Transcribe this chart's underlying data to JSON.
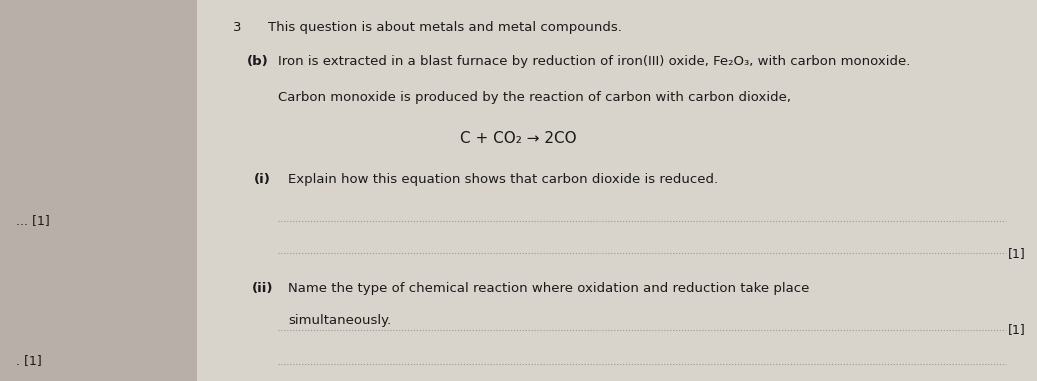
{
  "bg_color": "#b8b0a8",
  "paper_color": "#d8d4cc",
  "text_color": "#1a1a1a",
  "dotline_color": "#999999",
  "title_num": "3",
  "title_text": "This question is about metals and metal compounds.",
  "part_b_label": "(b)",
  "part_b_text": "Iron is extracted in a blast furnace by reduction of iron(III) oxide, Fe₂O₃, with carbon monoxide.",
  "carbon_intro": "Carbon monoxide is produced by the reaction of carbon with carbon dioxide,",
  "equation": "C + CO₂ → 2CO",
  "part_i_label": "(i)",
  "part_i_text": "Explain how this equation shows that carbon dioxide is reduced.",
  "mark_i": "[1]",
  "part_ii_label": "(ii)",
  "part_ii_line1": "Name the type of chemical reaction where oxidation and reduction take place",
  "part_ii_line2": "simultaneously.",
  "mark_ii": "[1]",
  "left_mark1": "... [1]",
  "left_mark2": ". [1]",
  "fontsize_main": 9.5,
  "fontsize_eq": 11,
  "fontsize_mark": 9
}
